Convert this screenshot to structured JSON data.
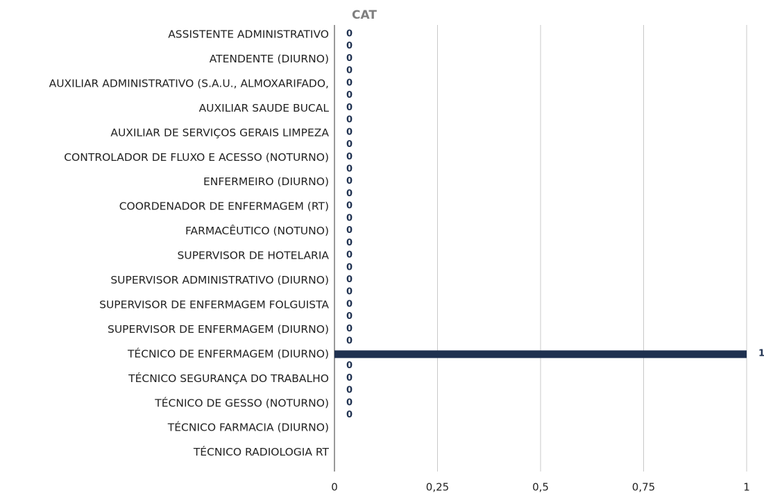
{
  "chart_data": {
    "type": "barh",
    "title": "CAT",
    "categories": [
      "ASSISTENTE ADMINISTRATIVO",
      "ATENDENTE (DIURNO)",
      "AUXILIAR ADMINISTRATIVO (S.A.U., ALMOXARIFADO,",
      "AUXILIAR SAUDE BUCAL",
      "AUXILIAR DE SERVIÇOS GERAIS LIMPEZA",
      "CONTROLADOR DE FLUXO E ACESSO (NOTURNO)",
      "ENFERMEIRO (DIURNO)",
      "COORDENADOR DE ENFERMAGEM (RT)",
      "FARMACÊUTICO (NOTUNO)",
      "SUPERVISOR DE HOTELARIA",
      "SUPERVISOR ADMINISTRATIVO (DIURNO)",
      "SUPERVISOR DE ENFERMAGEM FOLGUISTA",
      "SUPERVISOR DE ENFERMAGEM (DIURNO)",
      "TÉCNICO DE ENFERMAGEM (DIURNO)",
      "TÉCNICO SEGURANÇA DO TRABALHO",
      "TÉCNICO DE GESSO (NOTURNO)",
      "TÉCNICO FARMACIA (DIURNO)",
      "TÉCNICO RADIOLOGIA RT"
    ],
    "series": [
      {
        "color": "#1f3150",
        "values": [
          0,
          0,
          0,
          0,
          0,
          0,
          0,
          0,
          0,
          0,
          0,
          0,
          0,
          1,
          0,
          0,
          null,
          null
        ]
      },
      {
        "color": "#1f3150",
        "values": [
          0,
          0,
          0,
          0,
          0,
          0,
          0,
          0,
          0,
          0,
          0,
          0,
          0,
          0,
          0,
          0,
          null,
          null
        ]
      }
    ],
    "xlim": [
      0,
      1
    ],
    "xticks": [
      0,
      {
        "value": 0.25,
        "label": "0,25"
      },
      {
        "value": 0.5,
        "label": "0,5"
      },
      {
        "value": 0.75,
        "label": "0,75"
      },
      1
    ],
    "grid": true
  }
}
